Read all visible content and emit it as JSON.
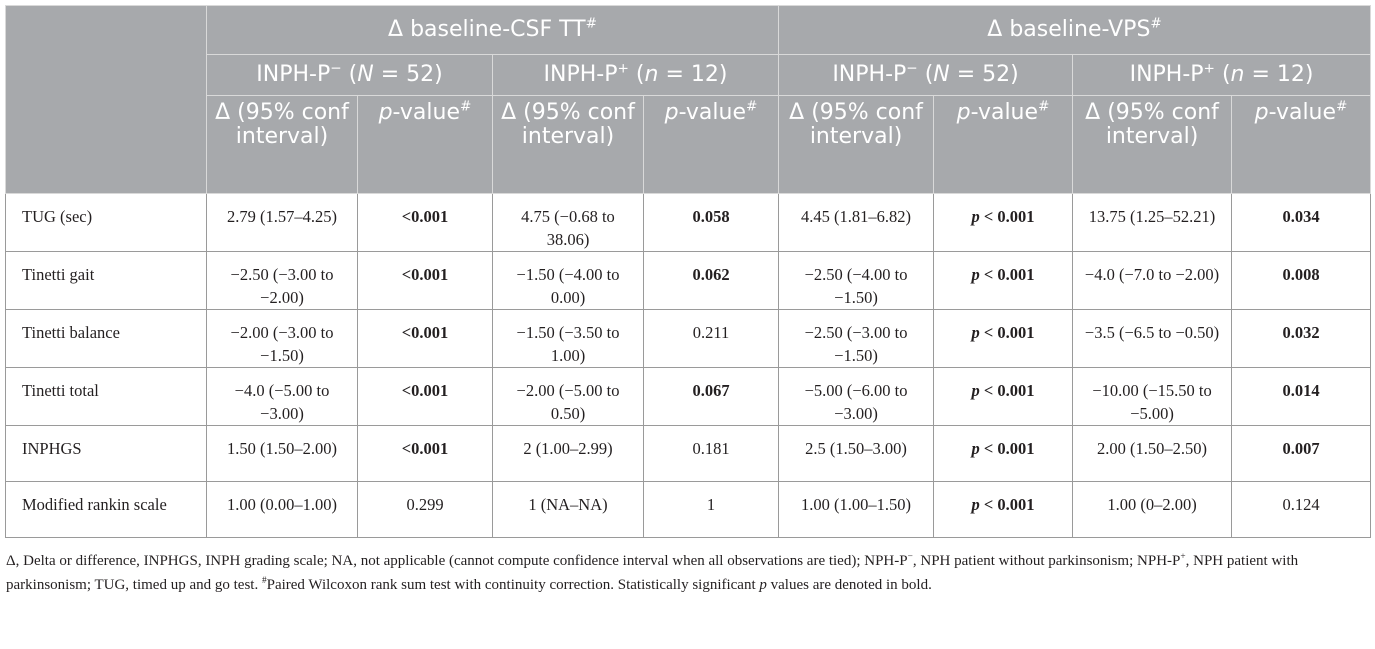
{
  "header": {
    "groups": [
      {
        "delta": "Δ",
        "label": "baseline-CSF TT",
        "sup": "#"
      },
      {
        "delta": "Δ",
        "label": "baseline-VPS",
        "sup": "#"
      }
    ],
    "cohorts": [
      {
        "name": "INPH-P",
        "sup": "−",
        "n_label": "N",
        "n_value": "52"
      },
      {
        "name": "INPH-P",
        "sup": "+",
        "n_label": "n",
        "n_value": "12"
      },
      {
        "name": "INPH-P",
        "sup": "−",
        "n_label": "N",
        "n_value": "52"
      },
      {
        "name": "INPH-P",
        "sup": "+",
        "n_label": "n",
        "n_value": "12"
      }
    ],
    "delta_col_label": "Δ (95% conf interval)",
    "p_col": {
      "p": "p",
      "rest": "-value",
      "sup": "#"
    }
  },
  "rows": [
    {
      "label": "TUG (sec)",
      "cells": [
        {
          "text": "2.79 (1.57–4.25)",
          "bold": false
        },
        {
          "text": "<0.001",
          "bold": true
        },
        {
          "text": "4.75 (−0.68 to 38.06)",
          "bold": false
        },
        {
          "text": "0.058",
          "bold": true
        },
        {
          "text": "4.45 (1.81–6.82)",
          "bold": false
        },
        {
          "text": "p < 0.001",
          "bold": true
        },
        {
          "text": "13.75 (1.25–52.21)",
          "bold": false
        },
        {
          "text": "0.034",
          "bold": true
        }
      ]
    },
    {
      "label": "Tinetti gait",
      "cells": [
        {
          "text": "−2.50 (−3.00 to −2.00)",
          "bold": false
        },
        {
          "text": "<0.001",
          "bold": true
        },
        {
          "text": "−1.50 (−4.00 to 0.00)",
          "bold": false
        },
        {
          "text": "0.062",
          "bold": true
        },
        {
          "text": "−2.50 (−4.00 to −1.50)",
          "bold": false
        },
        {
          "text": "p < 0.001",
          "bold": true
        },
        {
          "text": "−4.0 (−7.0 to −2.00)",
          "bold": false
        },
        {
          "text": "0.008",
          "bold": true
        }
      ]
    },
    {
      "label": "Tinetti balance",
      "cells": [
        {
          "text": "−2.00 (−3.00 to −1.50)",
          "bold": false
        },
        {
          "text": "<0.001",
          "bold": true
        },
        {
          "text": "−1.50 (−3.50 to 1.00)",
          "bold": false
        },
        {
          "text": "0.211",
          "bold": false
        },
        {
          "text": "−2.50 (−3.00 to −1.50)",
          "bold": false
        },
        {
          "text": "p < 0.001",
          "bold": true
        },
        {
          "text": "−3.5 (−6.5 to −0.50)",
          "bold": false
        },
        {
          "text": "0.032",
          "bold": true
        }
      ]
    },
    {
      "label": "Tinetti total",
      "cells": [
        {
          "text": "−4.0 (−5.00 to −3.00)",
          "bold": false
        },
        {
          "text": "<0.001",
          "bold": true
        },
        {
          "text": "−2.00 (−5.00 to 0.50)",
          "bold": false
        },
        {
          "text": "0.067",
          "bold": true
        },
        {
          "text": "−5.00 (−6.00 to −3.00)",
          "bold": false
        },
        {
          "text": "p < 0.001",
          "bold": true
        },
        {
          "text": "−10.00 (−15.50 to −5.00)",
          "bold": false
        },
        {
          "text": "0.014",
          "bold": true
        }
      ]
    },
    {
      "label": "INPHGS",
      "cells": [
        {
          "text": "1.50 (1.50–2.00)",
          "bold": false
        },
        {
          "text": "<0.001",
          "bold": true
        },
        {
          "text": "2 (1.00–2.99)",
          "bold": false
        },
        {
          "text": "0.181",
          "bold": false
        },
        {
          "text": "2.5 (1.50–3.00)",
          "bold": false
        },
        {
          "text": "p < 0.001",
          "bold": true
        },
        {
          "text": "2.00 (1.50–2.50)",
          "bold": false
        },
        {
          "text": "0.007",
          "bold": true
        }
      ]
    },
    {
      "label": "Modified rankin scale",
      "cells": [
        {
          "text": "1.00 (0.00–1.00)",
          "bold": false
        },
        {
          "text": "0.299",
          "bold": false
        },
        {
          "text": "1 (NA–NA)",
          "bold": false
        },
        {
          "text": "1",
          "bold": false
        },
        {
          "text": "1.00 (1.00–1.50)",
          "bold": false
        },
        {
          "text": "p < 0.001",
          "bold": true
        },
        {
          "text": "1.00 (0–2.00)",
          "bold": false
        },
        {
          "text": "0.124",
          "bold": false
        }
      ]
    }
  ],
  "footnote": {
    "part1": "Δ, Delta or difference, INPHGS, INPH grading scale; NA, not applicable (cannot compute confidence interval when all observations are tied); NPH-P",
    "sup_minus": "−",
    "part2": ", NPH patient without parkinsonism; NPH-P",
    "sup_plus": "+",
    "part3": ", NPH patient with parkinsonism; TUG, timed up and go test. ",
    "sup_hash": "#",
    "part4": "Paired Wilcoxon rank sum test with continuity correction. Statistically significant ",
    "p_italic": "p",
    "part5": " values are denoted in bold."
  },
  "colors": {
    "header_bg": "#a7a9ac",
    "header_text": "#ffffff",
    "body_text": "#231f20",
    "border": "#9a9a9a"
  }
}
